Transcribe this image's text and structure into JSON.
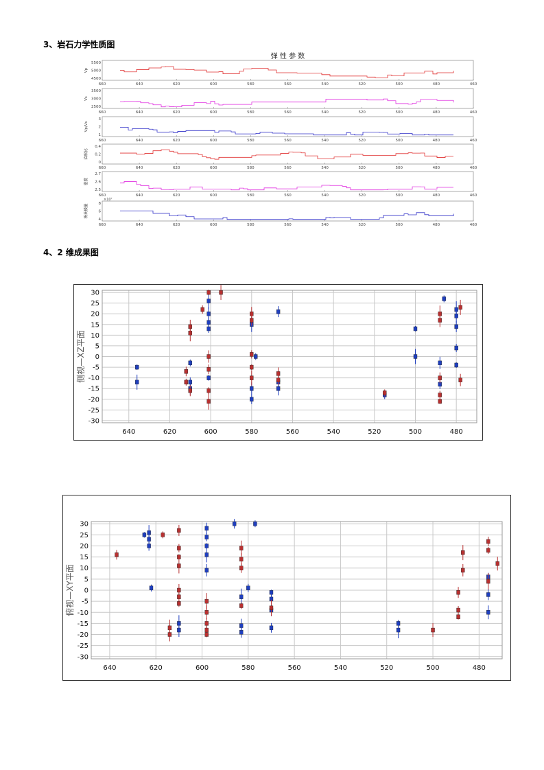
{
  "doc": {
    "section3": "3、岩石力学性质图",
    "section4": "4、2 维成果图"
  },
  "elastic": {
    "title": "弹 性 参 数",
    "xticks": [
      660,
      640,
      620,
      600,
      580,
      560,
      540,
      520,
      500,
      480,
      460
    ],
    "multiplier": "×10⁷",
    "panels": [
      {
        "ylabel": "Vp",
        "yticks": [
          "5500",
          "5000",
          "4500"
        ],
        "color": "#e03030"
      },
      {
        "ylabel": "Vs",
        "yticks": [
          "3500",
          "3000",
          "2500"
        ],
        "color": "#e030e0"
      },
      {
        "ylabel": "Vp/Vs",
        "yticks": [
          "3",
          "2",
          "1"
        ],
        "color": "#3030c8"
      },
      {
        "ylabel": "泊松比",
        "yticks": [
          "0.4",
          "0.2",
          "0"
        ],
        "color": "#e03030"
      },
      {
        "ylabel": "密度",
        "yticks": [
          "2.7",
          "2.6",
          "2.5"
        ],
        "color": "#e030e0"
      },
      {
        "ylabel": "杨氏模量",
        "yticks": [
          "8",
          "6",
          "4"
        ],
        "color": "#3030c8"
      }
    ]
  },
  "chart_data": [
    {
      "type": "scatter",
      "title": "",
      "ylabel": "侧视—XZ平面",
      "xlim": [
        653,
        470
      ],
      "ylim": [
        -31,
        31
      ],
      "xticks": [
        640,
        620,
        600,
        580,
        560,
        540,
        520,
        500,
        480
      ],
      "yticks": [
        30,
        25,
        20,
        15,
        10,
        5,
        0,
        -5,
        -10,
        -15,
        -20,
        -25,
        -30
      ],
      "series": [
        {
          "color": "#1f3fbf",
          "points": [
            [
              636,
              -5
            ],
            [
              636,
              -12
            ],
            [
              610,
              -15
            ],
            [
              610,
              -12
            ],
            [
              610,
              -3
            ],
            [
              601,
              26
            ],
            [
              601,
              20
            ],
            [
              601,
              16
            ],
            [
              601,
              13
            ],
            [
              601,
              -10
            ],
            [
              580,
              15
            ],
            [
              580,
              -15
            ],
            [
              580,
              -20
            ],
            [
              578,
              0
            ],
            [
              567,
              -12
            ],
            [
              567,
              -15
            ],
            [
              567,
              21
            ],
            [
              515,
              -18
            ],
            [
              500,
              13
            ],
            [
              500,
              0
            ],
            [
              488,
              -3
            ],
            [
              488,
              -13
            ],
            [
              486,
              27
            ],
            [
              480,
              22
            ],
            [
              480,
              19
            ],
            [
              480,
              14
            ],
            [
              480,
              4
            ],
            [
              480,
              -4
            ]
          ]
        },
        {
          "color": "#b83030",
          "points": [
            [
              612,
              -7
            ],
            [
              612,
              -12
            ],
            [
              610,
              11
            ],
            [
              610,
              14
            ],
            [
              610,
              -16
            ],
            [
              604,
              22
            ],
            [
              601,
              30
            ],
            [
              595,
              30
            ],
            [
              601,
              0
            ],
            [
              601,
              -6
            ],
            [
              601,
              -16
            ],
            [
              601,
              -21
            ],
            [
              580,
              20
            ],
            [
              580,
              17
            ],
            [
              580,
              1
            ],
            [
              580,
              -5
            ],
            [
              580,
              -10
            ],
            [
              567,
              -8
            ],
            [
              567,
              -11
            ],
            [
              515,
              -17
            ],
            [
              488,
              20
            ],
            [
              488,
              17
            ],
            [
              488,
              -10
            ],
            [
              488,
              -18
            ],
            [
              488,
              -21
            ],
            [
              478,
              23
            ],
            [
              478,
              -11
            ]
          ]
        }
      ]
    },
    {
      "type": "scatter",
      "title": "",
      "ylabel": "俯视—XY平面",
      "xlim": [
        648,
        470
      ],
      "ylim": [
        -31,
        31
      ],
      "xticks": [
        640,
        620,
        600,
        580,
        560,
        540,
        520,
        500,
        480
      ],
      "yticks": [
        30,
        25,
        20,
        15,
        10,
        5,
        0,
        -5,
        -10,
        -15,
        -20,
        -25,
        -30
      ],
      "series": [
        {
          "color": "#1f3fbf",
          "points": [
            [
              625,
              25
            ],
            [
              623,
              26
            ],
            [
              623,
              23
            ],
            [
              623,
              20
            ],
            [
              622,
              1
            ],
            [
              610,
              -15
            ],
            [
              610,
              -18
            ],
            [
              598,
              28
            ],
            [
              598,
              24
            ],
            [
              598,
              20
            ],
            [
              598,
              16
            ],
            [
              598,
              9
            ],
            [
              586,
              30
            ],
            [
              577,
              30
            ],
            [
              583,
              -3
            ],
            [
              583,
              -16
            ],
            [
              583,
              -19
            ],
            [
              580,
              1
            ],
            [
              570,
              -1
            ],
            [
              570,
              -4
            ],
            [
              570,
              -9
            ],
            [
              570,
              -17
            ],
            [
              515,
              -15
            ],
            [
              515,
              -18
            ],
            [
              476,
              -10
            ],
            [
              476,
              -2
            ],
            [
              476,
              6
            ]
          ]
        },
        {
          "color": "#b83030",
          "points": [
            [
              637,
              16
            ],
            [
              617,
              25
            ],
            [
              614,
              -17
            ],
            [
              614,
              -20
            ],
            [
              610,
              27
            ],
            [
              610,
              19
            ],
            [
              610,
              15
            ],
            [
              610,
              11
            ],
            [
              610,
              0
            ],
            [
              610,
              -3
            ],
            [
              610,
              -6
            ],
            [
              598,
              -5
            ],
            [
              598,
              -10
            ],
            [
              598,
              -15
            ],
            [
              598,
              -18
            ],
            [
              598,
              -20
            ],
            [
              583,
              19
            ],
            [
              583,
              14
            ],
            [
              583,
              10
            ],
            [
              583,
              -7
            ],
            [
              570,
              -8
            ],
            [
              500,
              -18
            ],
            [
              489,
              -1
            ],
            [
              489,
              -9
            ],
            [
              489,
              -12
            ],
            [
              487,
              17
            ],
            [
              487,
              9
            ],
            [
              476,
              22
            ],
            [
              476,
              18
            ],
            [
              476,
              4
            ],
            [
              472,
              12
            ]
          ]
        }
      ]
    }
  ]
}
